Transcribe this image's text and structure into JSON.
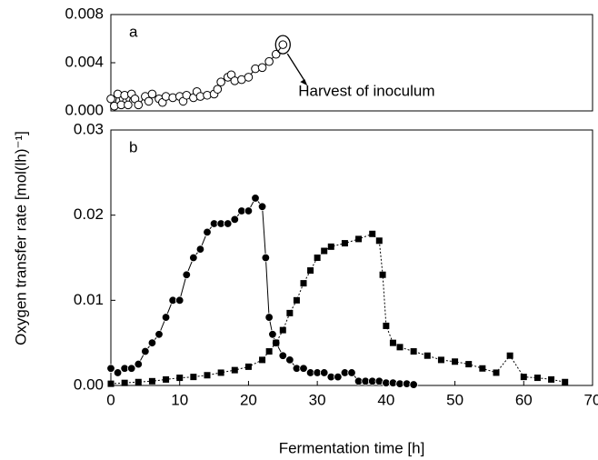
{
  "chart_data": [
    {
      "type": "line",
      "panel_label": "a",
      "x": [
        0,
        0.5,
        1,
        1.5,
        2,
        2.5,
        3,
        3.5,
        4,
        5,
        5.5,
        6,
        7,
        7.5,
        8,
        9,
        10,
        10.5,
        11,
        12,
        12.5,
        13,
        14,
        15,
        15.5,
        16,
        17,
        17.5,
        18,
        19,
        20,
        21,
        22,
        23,
        24,
        25
      ],
      "series": [
        {
          "color": "#000000",
          "marker": "open-circle",
          "values": [
            0.001,
            0.0004,
            0.0014,
            0.0005,
            0.0013,
            0.0005,
            0.0014,
            0.001,
            0.0005,
            0.0012,
            0.0008,
            0.0014,
            0.001,
            0.0007,
            0.0012,
            0.0011,
            0.0012,
            0.0008,
            0.0013,
            0.0011,
            0.0016,
            0.0012,
            0.0013,
            0.0014,
            0.0018,
            0.0024,
            0.0028,
            0.003,
            0.0025,
            0.0026,
            0.0028,
            0.0035,
            0.0036,
            0.0041,
            0.0047,
            0.0055
          ]
        }
      ],
      "annotation": {
        "text": "Harvest of inoculum",
        "x": 25,
        "y": 0.0055
      },
      "xlim": [
        0,
        70
      ],
      "ylim": [
        0,
        0.008
      ],
      "yticks": [
        {
          "value": 0,
          "label": "0.000"
        },
        0.004,
        0.008
      ]
    },
    {
      "type": "line",
      "panel_label": "b",
      "x_label": "Fermentation time [h]",
      "y_label": "Oxygen transfer rate [mol(lh)⁻¹]",
      "series": [
        {
          "color": "#000000",
          "marker": "filled-circle",
          "line": "solid",
          "x": [
            0,
            1,
            2,
            3,
            4,
            5,
            6,
            7,
            8,
            9,
            10,
            11,
            12,
            13,
            14,
            15,
            16,
            17,
            18,
            19,
            20,
            21,
            22,
            22.5,
            23,
            23.5,
            24,
            25,
            26,
            27,
            28,
            29,
            30,
            31,
            32,
            33,
            34,
            35,
            36,
            37,
            38,
            39,
            40,
            41,
            42,
            43,
            44
          ],
          "values": [
            0.002,
            0.0015,
            0.002,
            0.002,
            0.0025,
            0.004,
            0.005,
            0.006,
            0.008,
            0.01,
            0.01,
            0.013,
            0.015,
            0.016,
            0.018,
            0.019,
            0.019,
            0.019,
            0.0195,
            0.0205,
            0.0205,
            0.022,
            0.021,
            0.015,
            0.008,
            0.006,
            0.005,
            0.0035,
            0.003,
            0.002,
            0.002,
            0.0015,
            0.0015,
            0.0015,
            0.001,
            0.001,
            0.0015,
            0.0015,
            0.0005,
            0.0005,
            0.0005,
            0.0005,
            0.0003,
            0.0003,
            0.0002,
            0.0002,
            0.0001
          ]
        },
        {
          "color": "#000000",
          "marker": "filled-square",
          "line": "dotted",
          "x": [
            0,
            2,
            4,
            6,
            8,
            10,
            12,
            14,
            16,
            18,
            20,
            22,
            23,
            24,
            25,
            26,
            27,
            28,
            29,
            30,
            31,
            32,
            34,
            36,
            38,
            39,
            39.5,
            40,
            41,
            42,
            44,
            46,
            48,
            50,
            52,
            54,
            56,
            58,
            60,
            62,
            64,
            66
          ],
          "values": [
            0.0002,
            0.0003,
            0.0004,
            0.0005,
            0.0007,
            0.0009,
            0.001,
            0.0012,
            0.0015,
            0.0018,
            0.0022,
            0.003,
            0.004,
            0.005,
            0.0065,
            0.0085,
            0.01,
            0.012,
            0.0135,
            0.015,
            0.0158,
            0.0163,
            0.0167,
            0.0172,
            0.0178,
            0.017,
            0.013,
            0.007,
            0.005,
            0.0045,
            0.004,
            0.0035,
            0.003,
            0.0028,
            0.0025,
            0.002,
            0.0015,
            0.0035,
            0.001,
            0.0009,
            0.0007,
            0.0004
          ]
        }
      ],
      "xlim": [
        0,
        70
      ],
      "ylim": [
        0,
        0.03
      ],
      "xticks": [
        0,
        10,
        20,
        30,
        40,
        50,
        60,
        70
      ],
      "yticks": [
        {
          "value": 0,
          "label": "0.00"
        },
        0.01,
        0.02,
        0.03
      ]
    }
  ]
}
